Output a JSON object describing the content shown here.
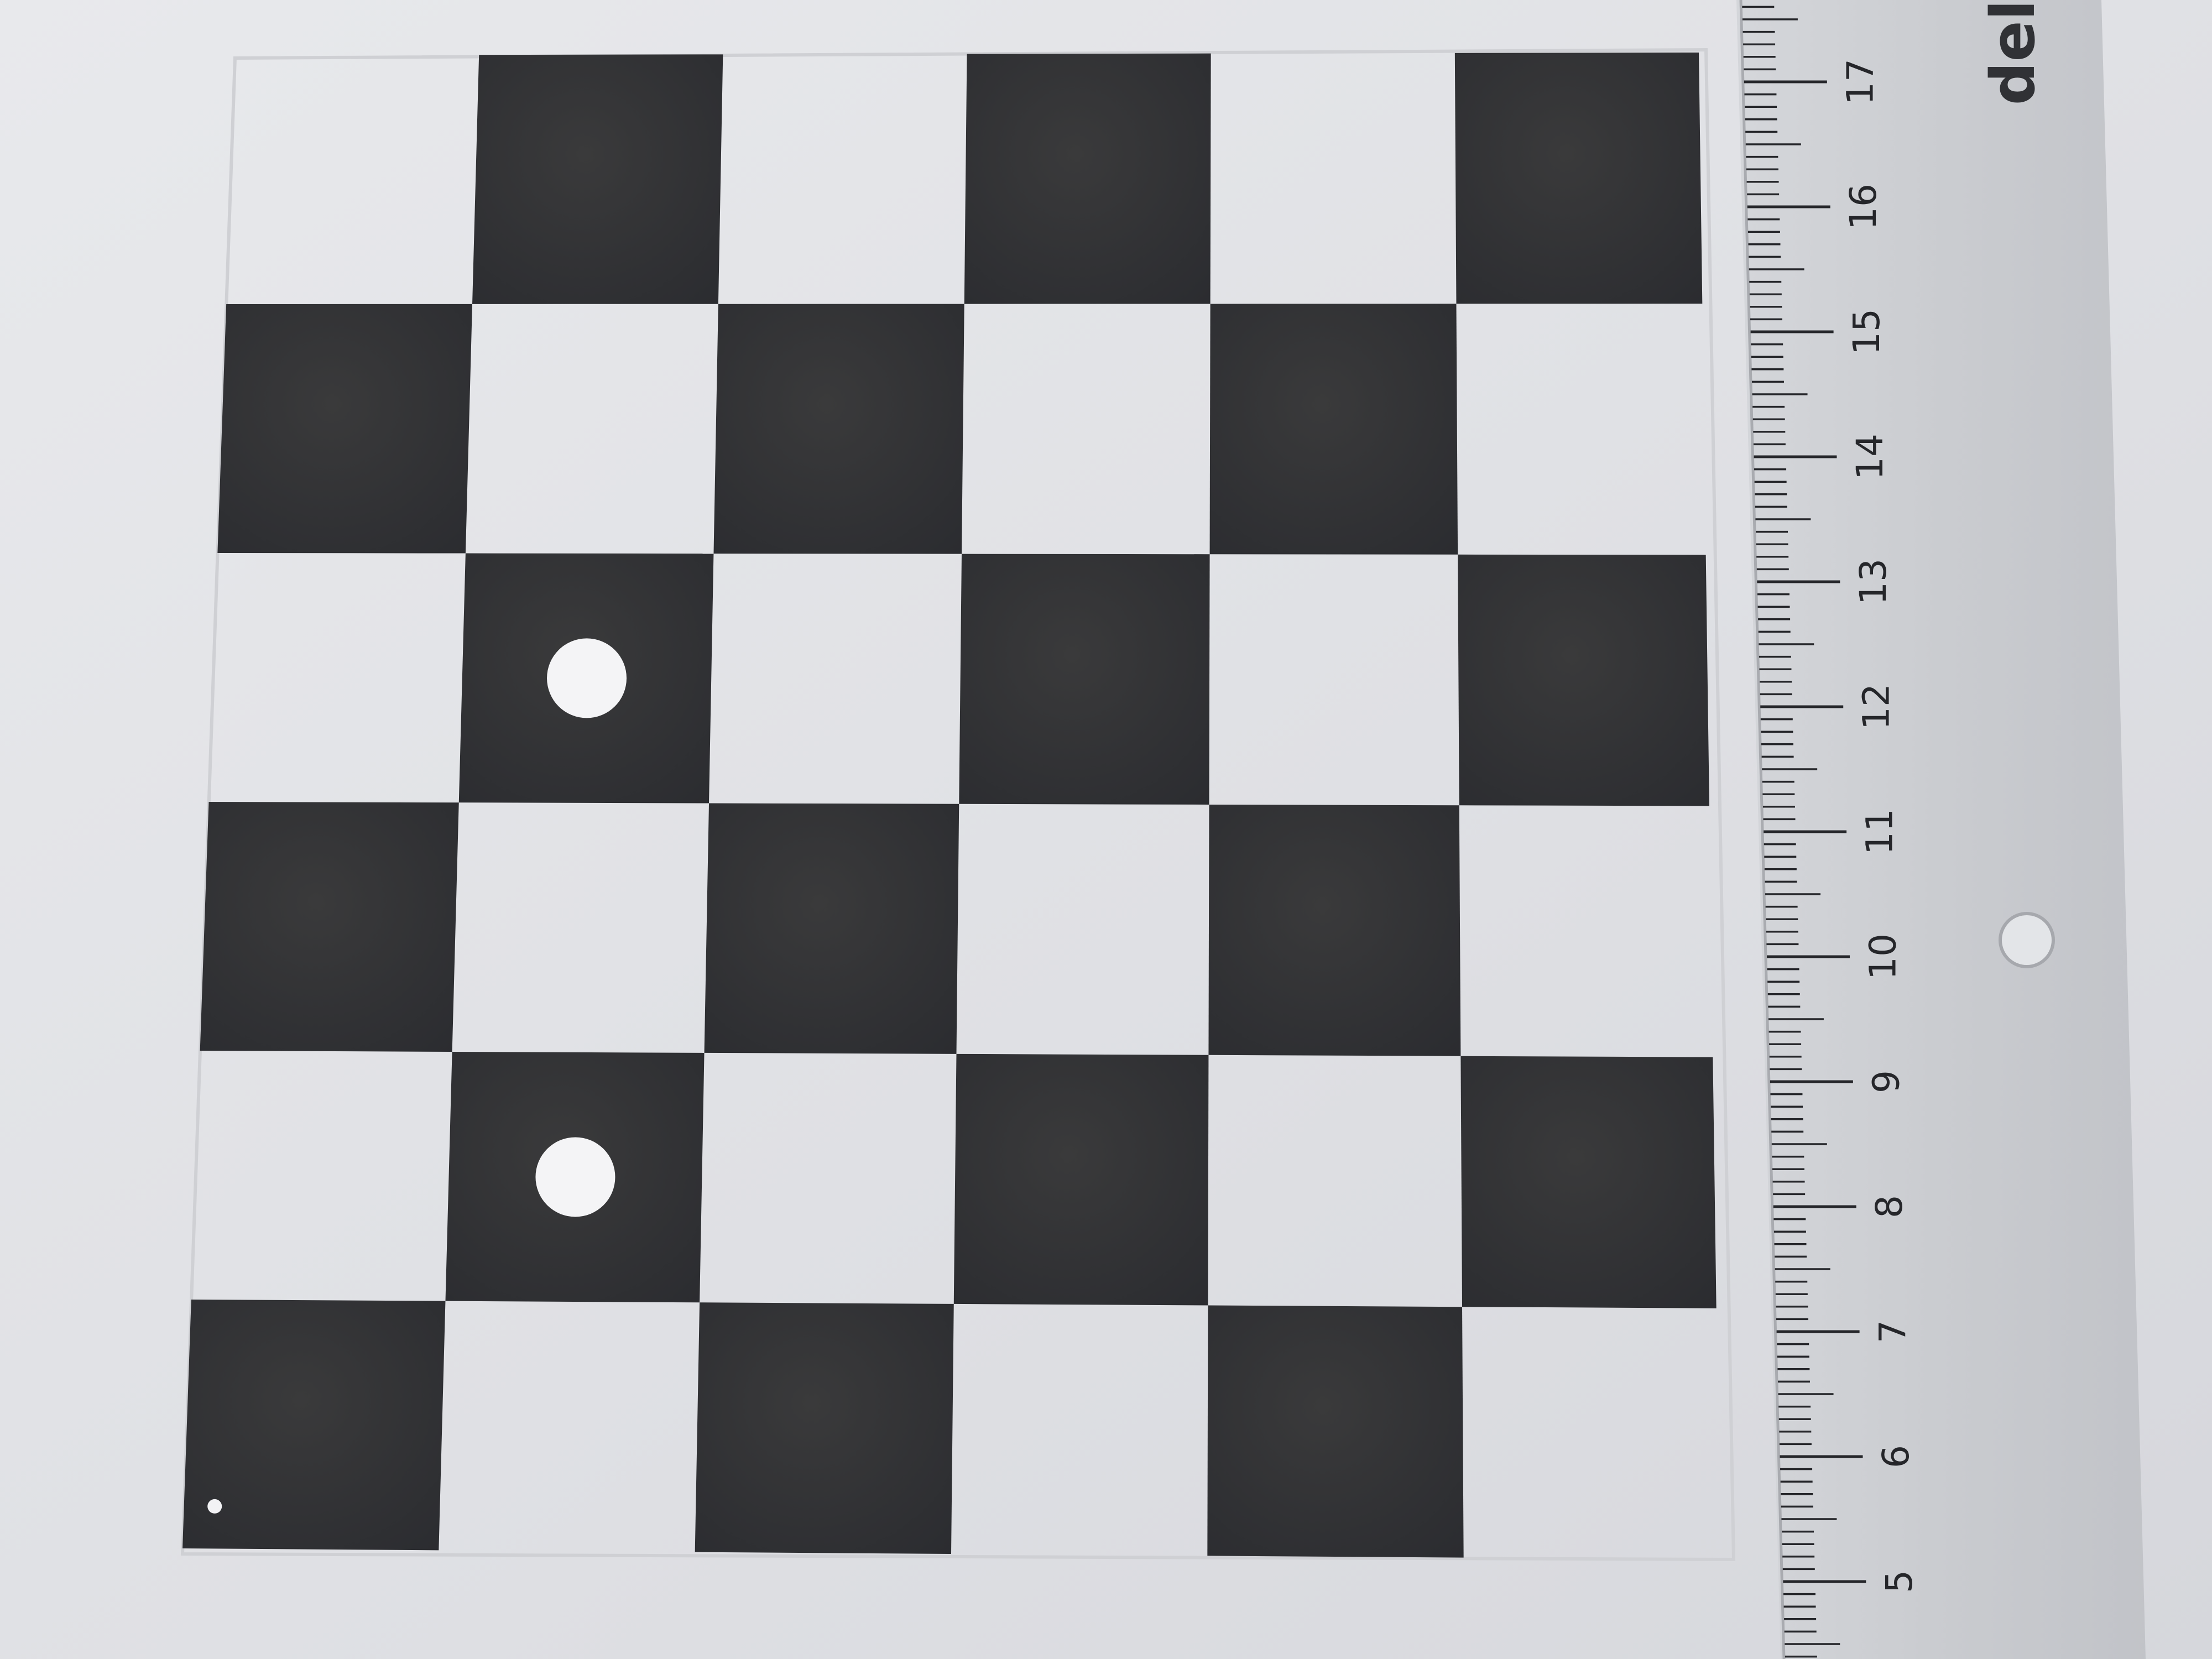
{
  "ruler": {
    "brand": "del",
    "numbers": [
      "5",
      "6",
      "7",
      "8",
      "9",
      "10",
      "11",
      "12",
      "13",
      "14",
      "15",
      "16",
      "17"
    ]
  },
  "board": {
    "rows": 6,
    "cols": 6,
    "dark_squares": [
      [
        0,
        1
      ],
      [
        0,
        3
      ],
      [
        0,
        5
      ],
      [
        1,
        0
      ],
      [
        1,
        2
      ],
      [
        1,
        4
      ],
      [
        2,
        1
      ],
      [
        2,
        3
      ],
      [
        2,
        5
      ],
      [
        3,
        0
      ],
      [
        3,
        2
      ],
      [
        3,
        4
      ],
      [
        4,
        1
      ],
      [
        4,
        3
      ],
      [
        4,
        5
      ],
      [
        5,
        0
      ],
      [
        5,
        2
      ],
      [
        5,
        4
      ]
    ],
    "white_dot_squares": [
      [
        2,
        1
      ],
      [
        4,
        1
      ]
    ],
    "small_dot_square": [
      5,
      0
    ]
  },
  "colors": {
    "paper": "#e2e3e7",
    "dark": "#2f3033",
    "ruler": "#c9cbcf",
    "ink": "#25262a"
  }
}
